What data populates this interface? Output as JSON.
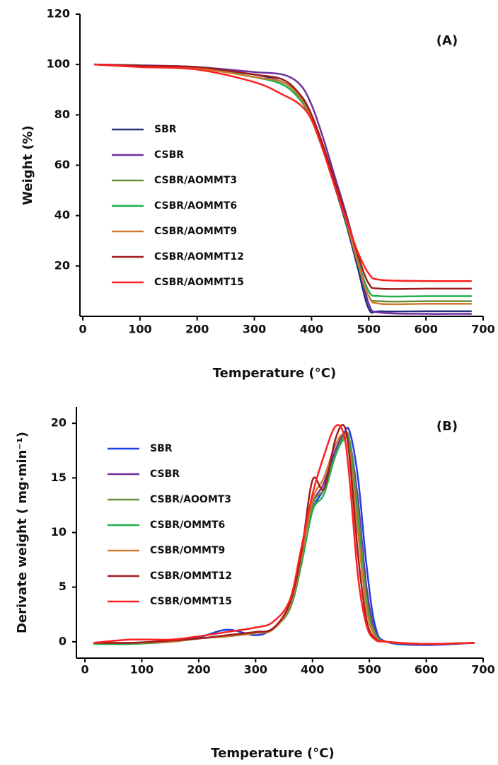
{
  "chart_data": [
    {
      "type": "line",
      "annotation": "(A)",
      "x_label": "Temperature (°C)",
      "y_label": "Weight (%)",
      "xlim": [
        -5,
        700
      ],
      "ylim": [
        0,
        120
      ],
      "xticks": [
        0,
        100,
        200,
        300,
        400,
        500,
        600,
        700
      ],
      "yticks": [
        20,
        40,
        60,
        80,
        100,
        120
      ],
      "x": [
        20,
        100,
        200,
        300,
        350,
        380,
        400,
        420,
        440,
        460,
        480,
        500,
        520,
        600,
        680
      ],
      "series": [
        {
          "name": "SBR",
          "color": "#1f2f7a",
          "values": [
            100,
            99.5,
            98.5,
            96,
            93,
            88,
            80,
            67,
            52,
            37,
            20,
            3,
            2,
            2,
            2
          ]
        },
        {
          "name": "CSBR",
          "color": "#7030a0",
          "values": [
            100,
            99.7,
            99,
            97,
            96,
            92,
            84,
            71,
            56,
            41,
            24,
            5,
            1.5,
            1,
            1
          ]
        },
        {
          "name": "CSBR/AOMMT3",
          "color": "#6b8e3a",
          "values": [
            100,
            99.5,
            98.5,
            95,
            92,
            86,
            78,
            66,
            52,
            38,
            22,
            8,
            6,
            6,
            6
          ]
        },
        {
          "name": "CSBR/AOMMT6",
          "color": "#1fb050",
          "values": [
            100,
            99.5,
            98.5,
            95,
            92,
            86,
            79,
            67,
            53,
            39,
            23,
            10,
            8,
            8,
            8
          ]
        },
        {
          "name": "CSBR/AOMMT9",
          "color": "#d07a30",
          "values": [
            100,
            99.5,
            98.5,
            95,
            93,
            87,
            79,
            67,
            53,
            39,
            22,
            8,
            5,
            5,
            5
          ]
        },
        {
          "name": "CSBR/AOMMT12",
          "color": "#a01c1c",
          "values": [
            100,
            99.5,
            99,
            96,
            94,
            88,
            80,
            68,
            54,
            40,
            25,
            13,
            11,
            11,
            11
          ]
        },
        {
          "name": "CSBR/AOMMT15",
          "color": "#ff2020",
          "values": [
            100,
            99,
            98,
            93,
            88,
            84,
            78,
            66,
            52,
            39,
            26,
            17,
            14.5,
            14,
            14
          ]
        }
      ]
    },
    {
      "type": "line",
      "annotation": "(B)",
      "x_label": "Temperature (°C)",
      "y_label": "Derivate weight ( mg·min⁻¹)",
      "xlim": [
        -15,
        700
      ],
      "ylim": [
        -1.5,
        21.5
      ],
      "xticks": [
        0,
        100,
        200,
        300,
        400,
        500,
        600,
        700
      ],
      "yticks": [
        0,
        5,
        10,
        15,
        20
      ],
      "x": [
        15,
        80,
        150,
        200,
        250,
        300,
        330,
        360,
        380,
        400,
        420,
        440,
        455,
        465,
        480,
        495,
        510,
        530,
        600,
        685
      ],
      "series": [
        {
          "name": "SBR",
          "color": "#1f3fe0",
          "values": [
            -0.1,
            -0.1,
            0,
            0.4,
            1.1,
            0.6,
            1.2,
            3,
            7,
            12,
            14,
            17,
            19,
            19.3,
            15,
            7,
            1.5,
            0,
            -0.3,
            -0.1
          ]
        },
        {
          "name": "CSBR",
          "color": "#7030a0",
          "values": [
            -0.1,
            -0.1,
            0,
            0.3,
            0.5,
            0.8,
            1.2,
            3,
            7,
            12.5,
            14.5,
            17.5,
            19,
            18.5,
            13,
            5,
            1,
            0,
            -0.2,
            -0.1
          ]
        },
        {
          "name": "CSBR/AOOMT3",
          "color": "#6b8e3a",
          "values": [
            -0.2,
            -0.2,
            0,
            0.3,
            0.5,
            0.8,
            1.2,
            3,
            7,
            12.5,
            14,
            17,
            18.8,
            18.5,
            12,
            4,
            0.8,
            0,
            -0.2,
            -0.1
          ]
        },
        {
          "name": "CSBR/OMMT6",
          "color": "#1fb050",
          "values": [
            -0.2,
            -0.2,
            0,
            0.3,
            0.5,
            0.8,
            1.2,
            3,
            7,
            12,
            13.5,
            17,
            18.5,
            18,
            11,
            3.5,
            0.5,
            0,
            -0.2,
            -0.1
          ]
        },
        {
          "name": "CSBR/OMMT9",
          "color": "#d07a30",
          "values": [
            -0.1,
            -0.1,
            0,
            0.3,
            0.5,
            0.8,
            1.1,
            3.2,
            7.5,
            13,
            15,
            18,
            19,
            17.5,
            10,
            3,
            0.5,
            0,
            -0.2,
            -0.1
          ]
        },
        {
          "name": "CSBR/OMMT12",
          "color": "#a01c1c",
          "values": [
            -0.1,
            -0.1,
            0.1,
            0.3,
            0.6,
            0.9,
            1.2,
            3.5,
            8,
            14.8,
            14,
            18.5,
            19.8,
            17,
            8,
            2,
            0.3,
            0,
            -0.2,
            -0.1
          ]
        },
        {
          "name": "CSBR/OMMT15",
          "color": "#ff2020",
          "values": [
            -0.1,
            0.2,
            0.2,
            0.5,
            0.9,
            1.3,
            1.8,
            3.8,
            8.5,
            13.5,
            17,
            19.7,
            19,
            15,
            6,
            1.5,
            0.2,
            0,
            -0.2,
            -0.1
          ]
        }
      ]
    }
  ]
}
